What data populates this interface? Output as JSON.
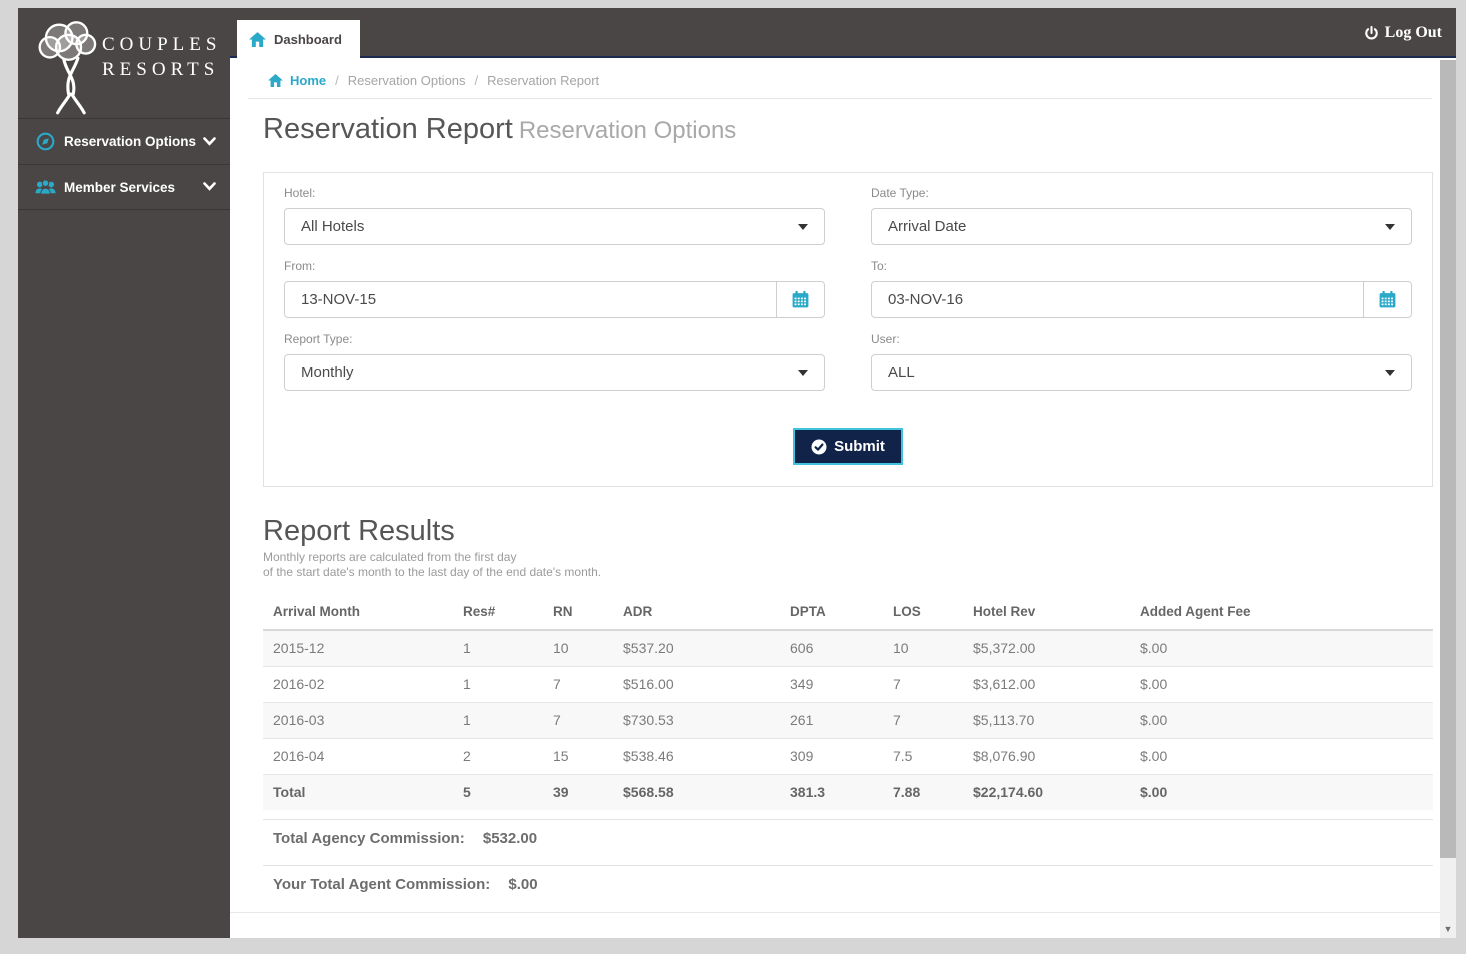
{
  "topbar": {
    "tab_label": "Dashboard",
    "logout_label": "Log Out"
  },
  "sidebar": {
    "brand_line1": "COUPLES",
    "brand_line2": "RESORTS",
    "items": [
      {
        "label": "Reservation Options",
        "icon": "compass-icon"
      },
      {
        "label": "Member Services",
        "icon": "users-icon"
      }
    ]
  },
  "breadcrumb": {
    "home": "Home",
    "sep": "/",
    "items": [
      "Reservation Options",
      "Reservation Report"
    ]
  },
  "page": {
    "title": "Reservation Report",
    "subtitle": "Reservation Options"
  },
  "form": {
    "hotel": {
      "label": "Hotel:",
      "value": "All Hotels"
    },
    "date_type": {
      "label": "Date Type:",
      "value": "Arrival Date"
    },
    "from": {
      "label": "From:",
      "value": "13-NOV-15"
    },
    "to": {
      "label": "To:",
      "value": "03-NOV-16"
    },
    "report_type": {
      "label": "Report Type:",
      "value": "Monthly"
    },
    "user": {
      "label": "User:",
      "value": "ALL"
    },
    "submit_label": "Submit"
  },
  "results": {
    "title": "Report Results",
    "note_line1": "Monthly reports are calculated from the first day",
    "note_line2": "of the start date's month to the last day of the end date's month.",
    "table": {
      "columns": [
        "Arrival Month",
        "Res#",
        "RN",
        "ADR",
        "DPTA",
        "LOS",
        "Hotel Rev",
        "Added Agent Fee"
      ],
      "rows": [
        [
          "2015-12",
          "1",
          "10",
          "$537.20",
          "606",
          "10",
          "$5,372.00",
          "$.00"
        ],
        [
          "2016-02",
          "1",
          "7",
          "$516.00",
          "349",
          "7",
          "$3,612.00",
          "$.00"
        ],
        [
          "2016-03",
          "1",
          "7",
          "$730.53",
          "261",
          "7",
          "$5,113.70",
          "$.00"
        ],
        [
          "2016-04",
          "2",
          "15",
          "$538.46",
          "309",
          "7.5",
          "$8,076.90",
          "$.00"
        ]
      ],
      "total_row": [
        "Total",
        "5",
        "39",
        "$568.58",
        "381.3",
        "7.88",
        "$22,174.60",
        "$.00"
      ]
    },
    "agency_commission": {
      "label": "Total Agency Commission:",
      "value": "$532.00"
    },
    "agent_commission": {
      "label": "Your Total Agent Commission:",
      "value": "$.00"
    }
  },
  "colors": {
    "accent_teal": "#2aa9c9",
    "sidebar_bg": "#4a4645",
    "submit_navy": "#12234a",
    "submit_border": "#40c4de",
    "topbar_underline": "#1d2b50"
  }
}
